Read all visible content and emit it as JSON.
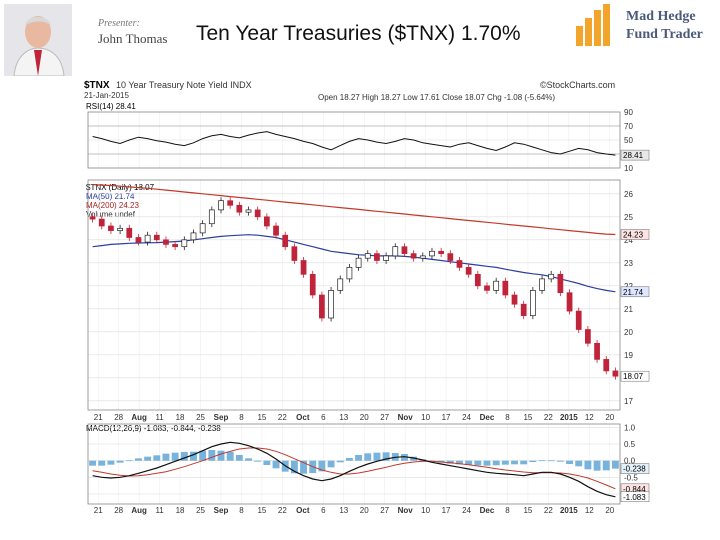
{
  "slide": {
    "title": "Ten Year Treasuries ($TNX) 1.70%",
    "presenter_label": "Presenter:",
    "presenter_name": "John Thomas",
    "brand_line1": "Mad Hedge",
    "brand_line2": "Fund Trader"
  },
  "chart_data": {
    "type": "candlestick",
    "header": {
      "symbol": "$TNX",
      "description": "10 Year Treasury Note Yield INDX",
      "date": "21-Jan-2015",
      "source": "©StockCharts.com",
      "quote": "Open 18.27  High 18.27  Low 17.61  Close 18.07  Chg -1.08 (-5.64%)"
    },
    "x_ticks": [
      "21",
      "28",
      "Aug",
      "11",
      "18",
      "25",
      "Sep",
      "8",
      "15",
      "22",
      "Oct",
      "6",
      "13",
      "20",
      "27",
      "Nov",
      "10",
      "17",
      "24",
      "Dec",
      "8",
      "15",
      "22",
      "2015",
      "12",
      "20"
    ],
    "rsi": {
      "label": "RSI(14) 28.41",
      "ticks": [
        90,
        70,
        50,
        30,
        10
      ],
      "last_label": "28.41",
      "values": [
        55,
        52,
        48,
        45,
        50,
        54,
        52,
        49,
        47,
        44,
        42,
        46,
        52,
        56,
        58,
        55,
        53,
        57,
        60,
        62,
        58,
        55,
        52,
        48,
        45,
        40,
        36,
        42,
        48,
        52,
        50,
        47,
        45,
        48,
        52,
        50,
        46,
        44,
        42,
        40,
        44,
        46,
        42,
        38,
        35,
        40,
        46,
        44,
        40,
        36,
        32,
        30,
        34,
        38,
        36,
        32,
        30,
        28.41
      ]
    },
    "price": {
      "legend": [
        "$TNX (Daily) 18.07",
        "MA(50) 21.74",
        "MA(200) 24.23",
        "Volume undef"
      ],
      "ticks": [
        26,
        25,
        24,
        23,
        22,
        21,
        20,
        19,
        18,
        17
      ],
      "ma50_label": "21.74",
      "ma200_label": "24.23",
      "last_label": "18.07",
      "close": [
        24.9,
        24.6,
        24.4,
        24.5,
        24.1,
        23.9,
        24.2,
        24.0,
        23.8,
        23.7,
        24.0,
        24.3,
        24.7,
        25.3,
        25.7,
        25.5,
        25.2,
        25.3,
        25.0,
        24.6,
        24.2,
        23.7,
        23.1,
        22.5,
        21.6,
        20.6,
        21.8,
        22.3,
        22.8,
        23.2,
        23.4,
        23.1,
        23.3,
        23.7,
        23.4,
        23.2,
        23.3,
        23.5,
        23.4,
        23.1,
        22.8,
        22.5,
        22.0,
        21.8,
        22.2,
        21.6,
        21.2,
        20.7,
        21.8,
        22.3,
        22.5,
        21.7,
        20.9,
        20.1,
        19.5,
        18.8,
        18.3,
        18.07
      ],
      "ma50": [
        23.7,
        23.75,
        23.8,
        23.82,
        23.85,
        23.86,
        23.87,
        23.88,
        23.9,
        23.92,
        23.95,
        24.0,
        24.05,
        24.1,
        24.15,
        24.18,
        24.2,
        24.22,
        24.2,
        24.15,
        24.1,
        24.0,
        23.9,
        23.8,
        23.7,
        23.6,
        23.5,
        23.45,
        23.4,
        23.35,
        23.33,
        23.3,
        23.3,
        23.3,
        23.28,
        23.25,
        23.2,
        23.15,
        23.1,
        23.05,
        23.0,
        22.95,
        22.9,
        22.85,
        22.8,
        22.72,
        22.65,
        22.58,
        22.52,
        22.48,
        22.4,
        22.3,
        22.2,
        22.1,
        21.98,
        21.88,
        21.8,
        21.74
      ],
      "ma200": [
        26.4,
        26.38,
        26.36,
        26.33,
        26.3,
        26.27,
        26.24,
        26.2,
        26.16,
        26.12,
        26.08,
        26.04,
        26.0,
        25.96,
        25.92,
        25.88,
        25.84,
        25.8,
        25.76,
        25.72,
        25.68,
        25.64,
        25.6,
        25.56,
        25.52,
        25.48,
        25.44,
        25.4,
        25.36,
        25.32,
        25.28,
        25.24,
        25.2,
        25.16,
        25.12,
        25.08,
        25.04,
        25.0,
        24.96,
        24.92,
        24.88,
        24.84,
        24.8,
        24.76,
        24.72,
        24.68,
        24.64,
        24.6,
        24.56,
        24.52,
        24.48,
        24.44,
        24.4,
        24.36,
        24.32,
        24.28,
        24.25,
        24.23
      ]
    },
    "macd": {
      "label": "MACD(12,26,9) -1.083, -0.844, -0.238",
      "ticks": [
        1.0,
        0.5,
        0.0,
        -0.5,
        -1.0
      ],
      "hist_label": "-0.238",
      "signal_label": "-0.844",
      "macd_label": "-1.083",
      "macd": [
        -0.45,
        -0.5,
        -0.52,
        -0.5,
        -0.45,
        -0.38,
        -0.3,
        -0.22,
        -0.12,
        -0.02,
        0.08,
        0.18,
        0.3,
        0.42,
        0.5,
        0.55,
        0.52,
        0.45,
        0.35,
        0.22,
        0.05,
        -0.15,
        -0.32,
        -0.45,
        -0.55,
        -0.6,
        -0.55,
        -0.45,
        -0.32,
        -0.2,
        -0.1,
        -0.02,
        0.05,
        0.1,
        0.12,
        0.08,
        0.02,
        -0.05,
        -0.1,
        -0.15,
        -0.2,
        -0.25,
        -0.3,
        -0.35,
        -0.38,
        -0.4,
        -0.42,
        -0.45,
        -0.4,
        -0.35,
        -0.35,
        -0.4,
        -0.5,
        -0.62,
        -0.78,
        -0.92,
        -1.02,
        -1.083
      ],
      "signal": [
        -0.3,
        -0.35,
        -0.4,
        -0.44,
        -0.46,
        -0.45,
        -0.42,
        -0.38,
        -0.33,
        -0.26,
        -0.18,
        -0.09,
        0.0,
        0.1,
        0.2,
        0.28,
        0.35,
        0.38,
        0.38,
        0.35,
        0.28,
        0.18,
        0.06,
        -0.06,
        -0.18,
        -0.28,
        -0.35,
        -0.4,
        -0.4,
        -0.37,
        -0.32,
        -0.26,
        -0.2,
        -0.13,
        -0.08,
        -0.04,
        -0.02,
        -0.02,
        -0.04,
        -0.06,
        -0.09,
        -0.12,
        -0.16,
        -0.2,
        -0.24,
        -0.28,
        -0.31,
        -0.34,
        -0.36,
        -0.36,
        -0.36,
        -0.37,
        -0.4,
        -0.45,
        -0.52,
        -0.62,
        -0.73,
        -0.844
      ]
    }
  }
}
